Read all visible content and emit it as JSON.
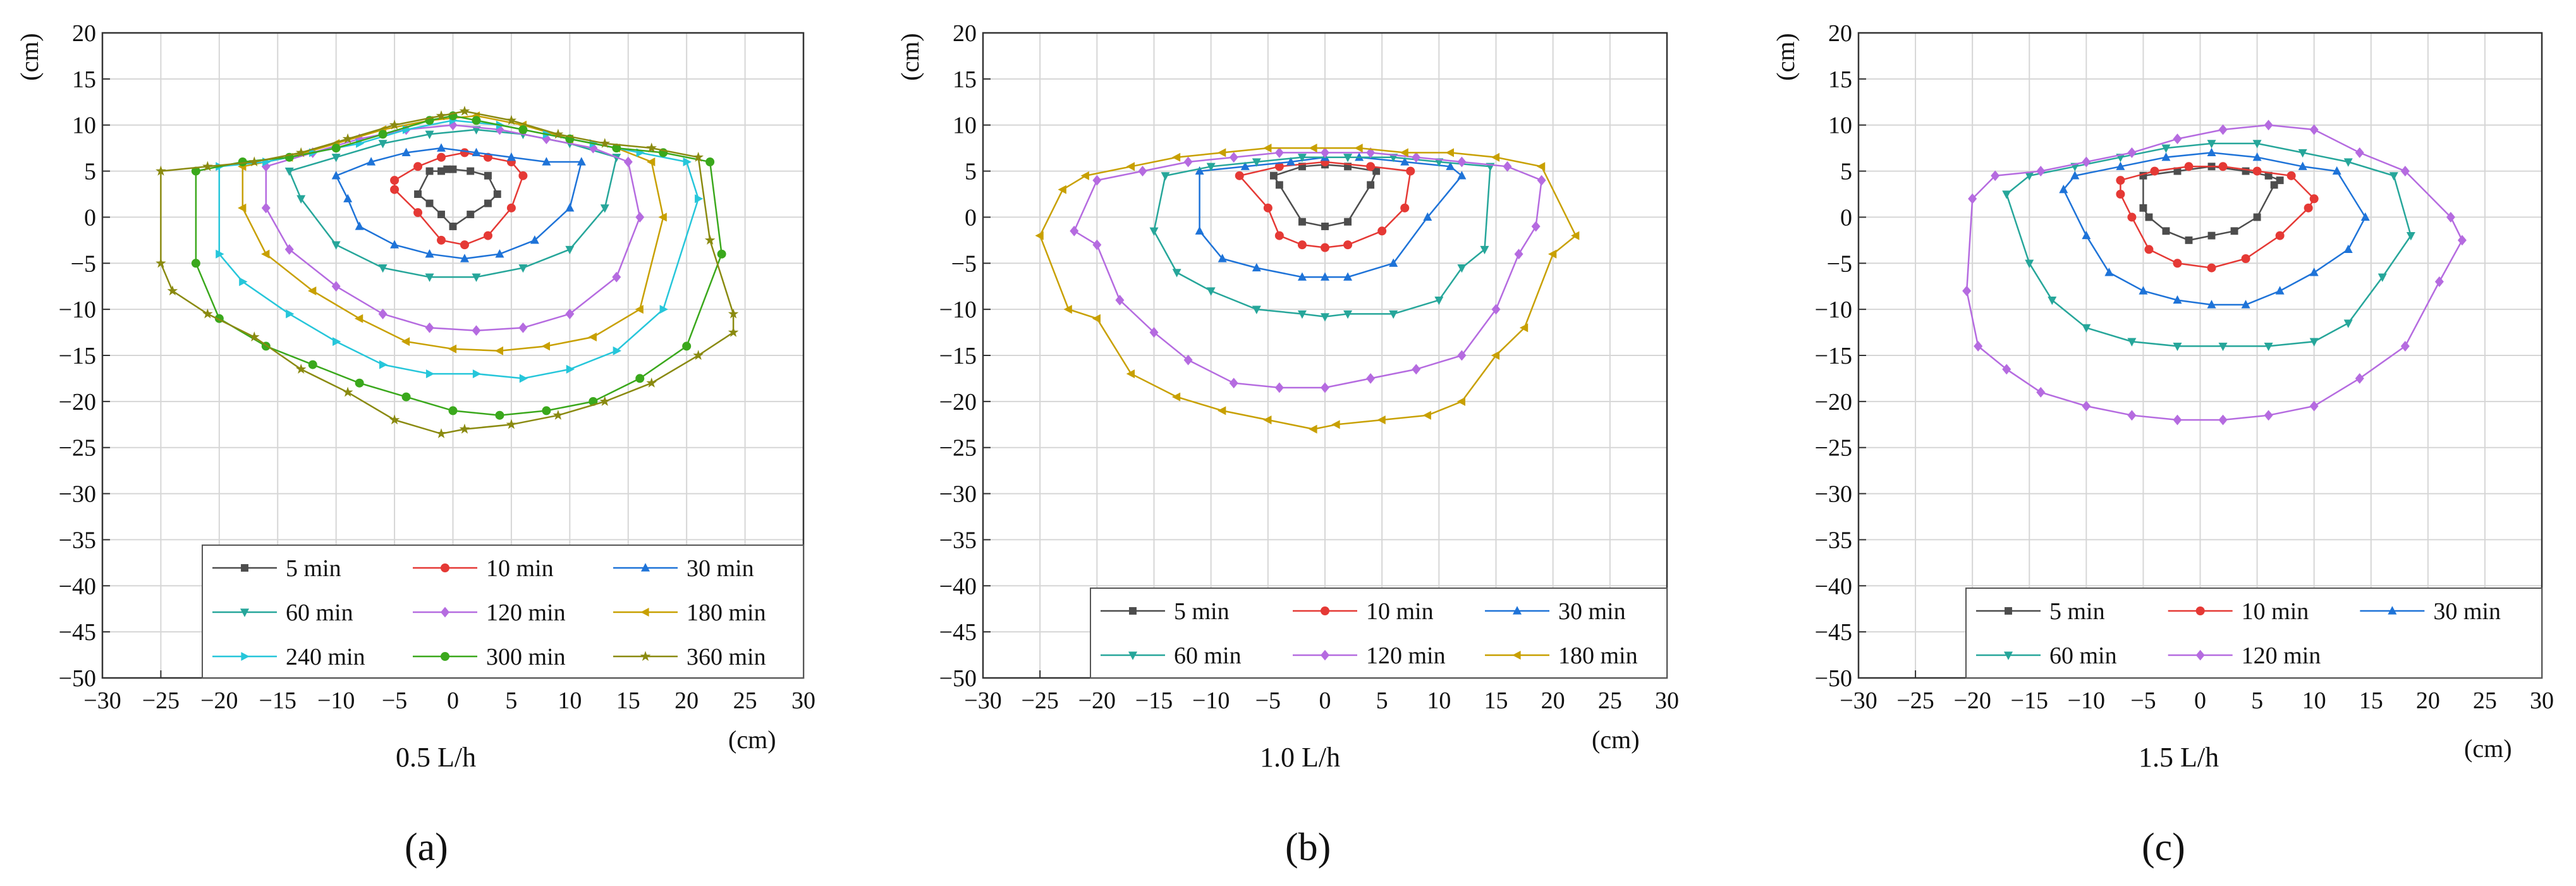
{
  "figure": {
    "panel_letters": [
      "(a)",
      "(b)",
      "(c)"
    ]
  },
  "chart_data": [
    {
      "type": "scatter",
      "title": "",
      "caption": "0.5 L/h",
      "xlabel": "(cm)",
      "ylabel": "(cm)",
      "xlim": [
        -30,
        30
      ],
      "ylim": [
        -50,
        20
      ],
      "xticks": [
        -30,
        -25,
        -20,
        -15,
        -10,
        -5,
        0,
        5,
        10,
        15,
        20,
        25,
        30
      ],
      "yticks": [
        -50,
        -45,
        -40,
        -35,
        -30,
        -25,
        -20,
        -15,
        -10,
        -5,
        0,
        5,
        10,
        15,
        20
      ],
      "grid": true,
      "legend_position": "bottom-right",
      "series": [
        {
          "name": "5 min",
          "color": "#4d4d4d",
          "marker": "square",
          "x": [
            -2.0,
            -1.0,
            -0.5,
            0.0,
            1.5,
            3.0,
            3.8,
            3.0,
            1.5,
            0.0,
            -1.0,
            -2.0,
            -3.0
          ],
          "y": [
            5.0,
            5.0,
            5.2,
            5.2,
            5.0,
            4.5,
            2.5,
            1.5,
            0.3,
            -1.0,
            0.3,
            1.5,
            2.5
          ]
        },
        {
          "name": "10 min",
          "color": "#e53935",
          "marker": "circle",
          "x": [
            -5.0,
            -3.0,
            -1.0,
            1.0,
            3.0,
            5.0,
            6.0,
            5.0,
            3.0,
            1.0,
            -1.0,
            -3.0,
            -5.0
          ],
          "y": [
            4.0,
            5.5,
            6.5,
            7.0,
            6.5,
            6.0,
            4.5,
            1.0,
            -2.0,
            -3.0,
            -2.5,
            0.5,
            3.0
          ]
        },
        {
          "name": "30 min",
          "color": "#1e73d8",
          "marker": "triangle-up",
          "x": [
            -10.0,
            -7.0,
            -4.0,
            -1.0,
            2.0,
            5.0,
            8.0,
            11.0,
            10.0,
            7.0,
            4.0,
            1.0,
            -2.0,
            -5.0,
            -8.0,
            -9.0
          ],
          "y": [
            4.5,
            6.0,
            7.0,
            7.5,
            7.0,
            6.5,
            6.0,
            6.0,
            1.0,
            -2.5,
            -4.0,
            -4.5,
            -4.0,
            -3.0,
            -1.0,
            2.0
          ]
        },
        {
          "name": "60 min",
          "color": "#26a69a",
          "marker": "triangle-down",
          "x": [
            -14.0,
            -10.0,
            -6.0,
            -2.0,
            2.0,
            6.0,
            10.0,
            14.0,
            13.0,
            10.0,
            6.0,
            2.0,
            -2.0,
            -6.0,
            -10.0,
            -13.0
          ],
          "y": [
            5.0,
            6.5,
            8.0,
            9.0,
            9.5,
            9.0,
            8.0,
            6.5,
            1.0,
            -3.5,
            -5.5,
            -6.5,
            -6.5,
            -5.5,
            -3.0,
            2.0
          ]
        },
        {
          "name": "120 min",
          "color": "#b56be0",
          "marker": "diamond",
          "x": [
            -16.0,
            -12.0,
            -8.0,
            -4.0,
            0.0,
            4.0,
            8.0,
            12.0,
            15.0,
            16.0,
            14.0,
            10.0,
            6.0,
            2.0,
            -2.0,
            -6.0,
            -10.0,
            -14.0,
            -16.0
          ],
          "y": [
            5.5,
            7.0,
            8.5,
            9.5,
            10.0,
            9.5,
            8.5,
            7.5,
            6.0,
            0.0,
            -6.5,
            -10.5,
            -12.0,
            -12.3,
            -12.0,
            -10.5,
            -7.5,
            -3.5,
            1.0
          ]
        },
        {
          "name": "180 min",
          "color": "#c8a000",
          "marker": "triangle-left",
          "x": [
            -18.0,
            -14.0,
            -10.0,
            -6.0,
            -2.0,
            2.0,
            6.0,
            10.0,
            14.0,
            17.0,
            18.0,
            16.0,
            12.0,
            8.0,
            4.0,
            0.0,
            -4.0,
            -8.0,
            -12.0,
            -16.0,
            -18.0
          ],
          "y": [
            5.5,
            6.5,
            8.0,
            9.5,
            10.5,
            11.0,
            10.0,
            8.5,
            7.5,
            6.0,
            0.0,
            -10.0,
            -13.0,
            -14.0,
            -14.5,
            -14.3,
            -13.5,
            -11.0,
            -8.0,
            -4.0,
            1.0
          ]
        },
        {
          "name": "240 min",
          "color": "#26c6da",
          "marker": "triangle-right",
          "x": [
            -20.0,
            -16.0,
            -12.0,
            -8.0,
            -4.0,
            0.0,
            4.0,
            8.0,
            12.0,
            16.0,
            20.0,
            21.0,
            18.0,
            14.0,
            10.0,
            6.0,
            2.0,
            -2.0,
            -6.0,
            -10.0,
            -14.0,
            -18.0,
            -20.0
          ],
          "y": [
            5.5,
            6.0,
            7.0,
            8.0,
            9.5,
            10.5,
            10.0,
            9.0,
            8.0,
            7.0,
            6.0,
            2.0,
            -10.0,
            -14.5,
            -16.5,
            -17.5,
            -17.0,
            -17.0,
            -16.0,
            -13.5,
            -10.5,
            -7.0,
            -4.0
          ]
        },
        {
          "name": "300 min",
          "color": "#3aa81c",
          "marker": "circle",
          "x": [
            -22.0,
            -18.0,
            -14.0,
            -10.0,
            -6.0,
            -2.0,
            0.0,
            2.0,
            6.0,
            10.0,
            14.0,
            18.0,
            22.0,
            23.0,
            20.0,
            16.0,
            12.0,
            8.0,
            4.0,
            0.0,
            -4.0,
            -8.0,
            -12.0,
            -16.0,
            -20.0,
            -22.0
          ],
          "y": [
            5.0,
            6.0,
            6.5,
            7.5,
            9.0,
            10.5,
            11.0,
            10.5,
            9.5,
            8.5,
            7.5,
            7.0,
            6.0,
            -4.0,
            -14.0,
            -17.5,
            -20.0,
            -21.0,
            -21.5,
            -21.0,
            -19.5,
            -18.0,
            -16.0,
            -14.0,
            -11.0,
            -5.0
          ]
        },
        {
          "name": "360 min",
          "color": "#8a8a10",
          "marker": "star",
          "x": [
            -25.0,
            -21.0,
            -17.0,
            -13.0,
            -9.0,
            -5.0,
            -1.0,
            1.0,
            5.0,
            9.0,
            13.0,
            17.0,
            21.0,
            22.0,
            24.0,
            24.0,
            21.0,
            17.0,
            13.0,
            9.0,
            5.0,
            1.0,
            -1.0,
            -5.0,
            -9.0,
            -13.0,
            -17.0,
            -21.0,
            -24.0,
            -25.0
          ],
          "y": [
            5.0,
            5.5,
            6.0,
            7.0,
            8.5,
            10.0,
            11.0,
            11.5,
            10.5,
            9.0,
            8.0,
            7.5,
            6.5,
            -2.5,
            -10.5,
            -12.5,
            -15.0,
            -18.0,
            -20.0,
            -21.5,
            -22.5,
            -23.0,
            -23.5,
            -22.0,
            -19.0,
            -16.5,
            -13.0,
            -10.5,
            -8.0,
            -5.0
          ]
        }
      ]
    },
    {
      "type": "scatter",
      "title": "",
      "caption": "1.0 L/h",
      "xlabel": "(cm)",
      "ylabel": "(cm)",
      "xlim": [
        -30,
        30
      ],
      "ylim": [
        -50,
        20
      ],
      "xticks": [
        -30,
        -25,
        -20,
        -15,
        -10,
        -5,
        0,
        5,
        10,
        15,
        20,
        25,
        30
      ],
      "yticks": [
        -50,
        -45,
        -40,
        -35,
        -30,
        -25,
        -20,
        -15,
        -10,
        -5,
        0,
        5,
        10,
        15,
        20
      ],
      "grid": true,
      "legend_position": "bottom-right",
      "series": [
        {
          "name": "5 min",
          "color": "#4d4d4d",
          "marker": "square",
          "x": [
            -4.5,
            -2.0,
            0.0,
            2.0,
            4.5,
            4.0,
            2.0,
            0.0,
            -2.0,
            -4.0
          ],
          "y": [
            4.5,
            5.5,
            5.7,
            5.5,
            5.0,
            3.5,
            -0.5,
            -1.0,
            -0.5,
            3.5
          ]
        },
        {
          "name": "10 min",
          "color": "#e53935",
          "marker": "circle",
          "x": [
            -7.5,
            -4.0,
            0.0,
            4.0,
            7.5,
            7.0,
            5.0,
            2.0,
            0.0,
            -2.0,
            -4.0,
            -5.0
          ],
          "y": [
            4.5,
            5.5,
            6.0,
            5.5,
            5.0,
            1.0,
            -1.5,
            -3.0,
            -3.3,
            -3.0,
            -2.0,
            1.0
          ]
        },
        {
          "name": "30 min",
          "color": "#1e73d8",
          "marker": "triangle-up",
          "x": [
            -11.0,
            -7.0,
            -3.0,
            0.0,
            3.0,
            7.0,
            11.0,
            12.0,
            9.0,
            6.0,
            2.0,
            0.0,
            -2.0,
            -6.0,
            -9.0,
            -11.0
          ],
          "y": [
            5.0,
            5.5,
            6.0,
            6.5,
            6.5,
            6.0,
            5.5,
            4.5,
            0.0,
            -5.0,
            -6.5,
            -6.5,
            -6.5,
            -5.5,
            -4.5,
            -1.5
          ]
        },
        {
          "name": "60 min",
          "color": "#26a69a",
          "marker": "triangle-down",
          "x": [
            -14.0,
            -10.0,
            -6.0,
            -2.0,
            2.0,
            6.0,
            10.0,
            14.5,
            14.0,
            12.0,
            10.0,
            6.0,
            2.0,
            0.0,
            -2.0,
            -6.0,
            -10.0,
            -13.0,
            -15.0
          ],
          "y": [
            4.5,
            5.5,
            6.0,
            6.5,
            6.5,
            6.5,
            6.0,
            5.5,
            -3.5,
            -5.5,
            -9.0,
            -10.5,
            -10.5,
            -10.8,
            -10.5,
            -10.0,
            -8.0,
            -6.0,
            -1.5
          ]
        },
        {
          "name": "120 min",
          "color": "#b56be0",
          "marker": "diamond",
          "x": [
            -20.0,
            -16.0,
            -12.0,
            -8.0,
            -4.0,
            0.0,
            4.0,
            8.0,
            12.0,
            16.0,
            19.0,
            18.5,
            17.0,
            15.0,
            12.0,
            8.0,
            4.0,
            0.0,
            -4.0,
            -8.0,
            -12.0,
            -15.0,
            -18.0,
            -20.0,
            -22.0
          ],
          "y": [
            4.0,
            5.0,
            6.0,
            6.5,
            7.0,
            7.0,
            7.0,
            6.5,
            6.0,
            5.5,
            4.0,
            -1.0,
            -4.0,
            -10.0,
            -15.0,
            -16.5,
            -17.5,
            -18.5,
            -18.5,
            -18.0,
            -15.5,
            -12.5,
            -9.0,
            -3.0,
            -1.5
          ]
        },
        {
          "name": "180 min",
          "color": "#c8a000",
          "marker": "triangle-left",
          "x": [
            -21.0,
            -17.0,
            -13.0,
            -9.0,
            -5.0,
            -1.0,
            3.0,
            7.0,
            11.0,
            15.0,
            19.0,
            22.0,
            20.0,
            17.5,
            15.0,
            12.0,
            9.0,
            5.0,
            1.0,
            -1.0,
            -5.0,
            -9.0,
            -13.0,
            -17.0,
            -20.0,
            -22.5,
            -25.0,
            -23.0
          ],
          "y": [
            4.5,
            5.5,
            6.5,
            7.0,
            7.5,
            7.5,
            7.5,
            7.0,
            7.0,
            6.5,
            5.5,
            -2.0,
            -4.0,
            -12.0,
            -15.0,
            -20.0,
            -21.5,
            -22.0,
            -22.5,
            -23.0,
            -22.0,
            -21.0,
            -19.5,
            -17.0,
            -11.0,
            -10.0,
            -2.0,
            3.0
          ]
        }
      ]
    },
    {
      "type": "scatter",
      "title": "",
      "caption": "1.5 L/h",
      "xlabel": "(cm)",
      "ylabel": "(cm)",
      "xlim": [
        -30,
        30
      ],
      "ylim": [
        -50,
        20
      ],
      "xticks": [
        -30,
        -25,
        -20,
        -15,
        -10,
        -5,
        0,
        5,
        10,
        15,
        20,
        25,
        30
      ],
      "yticks": [
        -50,
        -45,
        -40,
        -35,
        -30,
        -25,
        -20,
        -15,
        -10,
        -5,
        0,
        5,
        10,
        15,
        20
      ],
      "grid": true,
      "legend_position": "bottom-right",
      "series": [
        {
          "name": "5 min",
          "color": "#4d4d4d",
          "marker": "square",
          "x": [
            -5.0,
            -2.0,
            1.0,
            4.0,
            6.0,
            7.0,
            6.5,
            5.0,
            3.0,
            1.0,
            -1.0,
            -3.0,
            -4.5,
            -5.0
          ],
          "y": [
            4.5,
            5.0,
            5.5,
            5.0,
            4.5,
            4.0,
            3.5,
            0.0,
            -1.5,
            -2.0,
            -2.5,
            -1.5,
            0.0,
            1.0
          ]
        },
        {
          "name": "10 min",
          "color": "#e53935",
          "marker": "circle",
          "x": [
            -7.0,
            -4.0,
            -1.0,
            2.0,
            5.0,
            8.0,
            10.0,
            9.5,
            7.0,
            4.0,
            1.0,
            -2.0,
            -4.5,
            -6.0,
            -7.0
          ],
          "y": [
            4.0,
            5.0,
            5.5,
            5.5,
            5.0,
            4.5,
            2.0,
            1.0,
            -2.0,
            -4.5,
            -5.5,
            -5.0,
            -3.5,
            0.0,
            2.5
          ]
        },
        {
          "name": "30 min",
          "color": "#1e73d8",
          "marker": "triangle-up",
          "x": [
            -11.0,
            -7.0,
            -3.0,
            1.0,
            5.0,
            9.0,
            12.0,
            14.5,
            13.0,
            10.0,
            7.0,
            4.0,
            1.0,
            -2.0,
            -5.0,
            -8.0,
            -10.0,
            -12.0
          ],
          "y": [
            4.5,
            5.5,
            6.5,
            7.0,
            6.5,
            5.5,
            5.0,
            0.0,
            -3.5,
            -6.0,
            -8.0,
            -9.5,
            -9.5,
            -9.0,
            -8.0,
            -6.0,
            -2.0,
            3.0
          ]
        },
        {
          "name": "60 min",
          "color": "#26a69a",
          "marker": "triangle-down",
          "x": [
            -15.0,
            -11.0,
            -7.0,
            -3.0,
            1.0,
            5.0,
            9.0,
            13.0,
            17.0,
            18.5,
            16.0,
            13.0,
            10.0,
            6.0,
            2.0,
            -2.0,
            -6.0,
            -10.0,
            -13.0,
            -15.0,
            -17.0
          ],
          "y": [
            4.5,
            5.5,
            6.5,
            7.5,
            8.0,
            8.0,
            7.0,
            6.0,
            4.5,
            -2.0,
            -6.5,
            -11.5,
            -13.5,
            -14.0,
            -14.0,
            -14.0,
            -13.5,
            -12.0,
            -9.0,
            -5.0,
            2.5
          ]
        },
        {
          "name": "120 min",
          "color": "#b56be0",
          "marker": "diamond",
          "x": [
            -18.0,
            -14.0,
            -10.0,
            -6.0,
            -2.0,
            2.0,
            6.0,
            10.0,
            14.0,
            18.0,
            22.0,
            23.0,
            21.0,
            18.0,
            14.0,
            10.0,
            6.0,
            2.0,
            -2.0,
            -6.0,
            -10.0,
            -14.0,
            -17.0,
            -19.5,
            -20.5,
            -20.0
          ],
          "y": [
            4.5,
            5.0,
            6.0,
            7.0,
            8.5,
            9.5,
            10.0,
            9.5,
            7.0,
            5.0,
            0.0,
            -2.5,
            -7.0,
            -14.0,
            -17.5,
            -20.5,
            -21.5,
            -22.0,
            -22.0,
            -21.5,
            -20.5,
            -19.0,
            -16.5,
            -14.0,
            -8.0,
            2.0
          ]
        }
      ]
    }
  ]
}
